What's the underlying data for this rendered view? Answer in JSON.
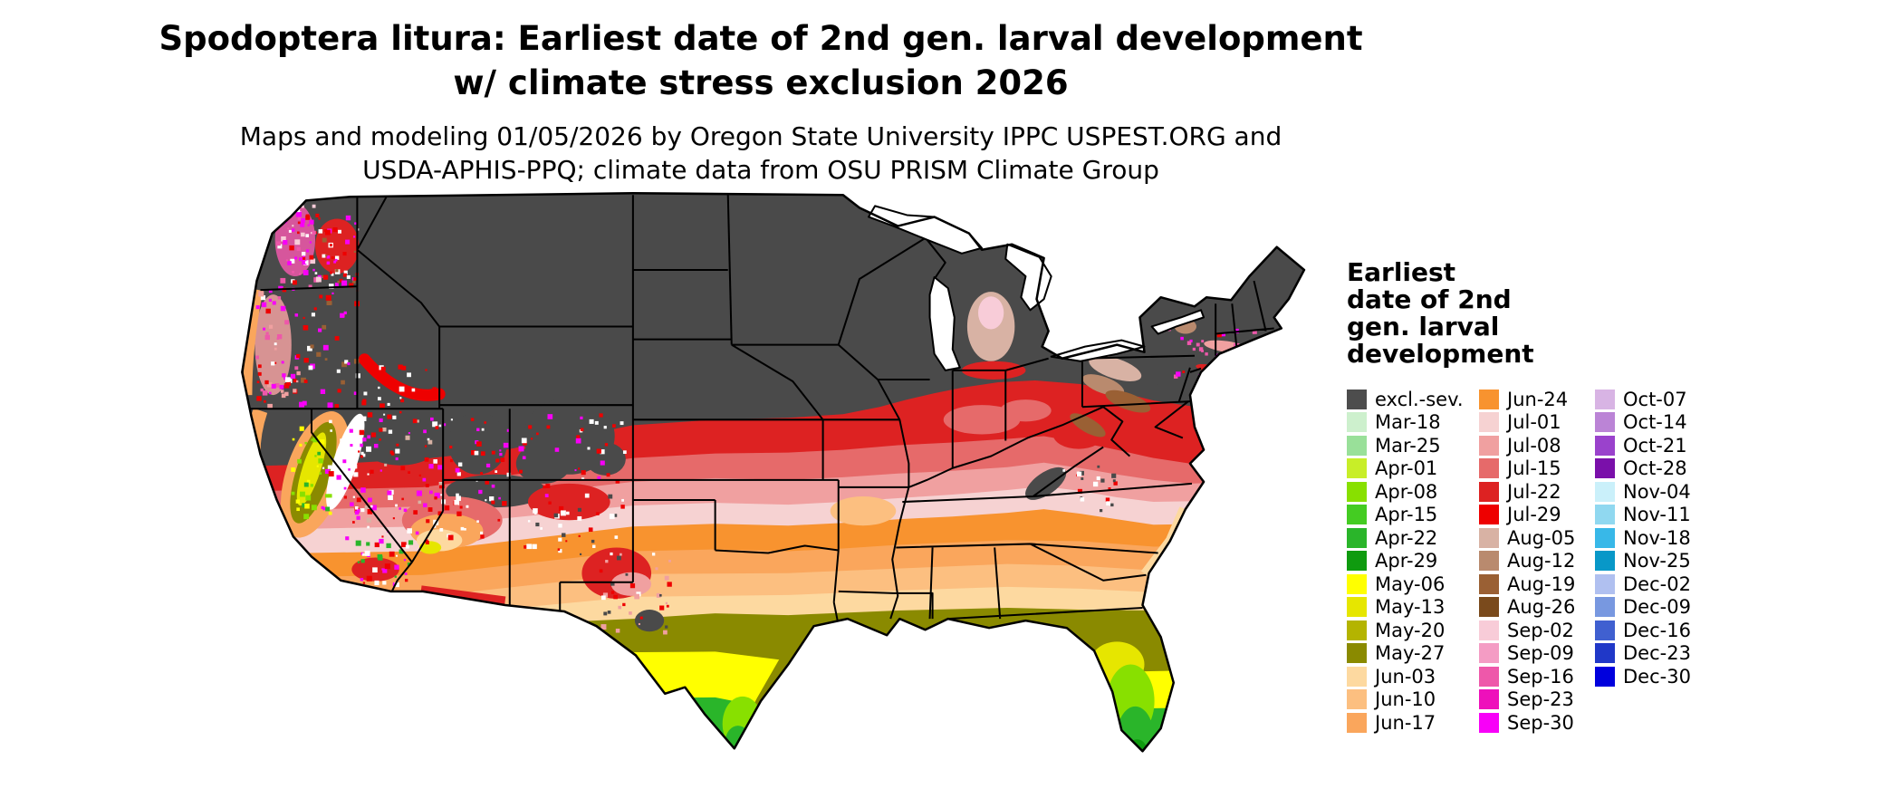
{
  "title": {
    "line1": "Spodoptera litura: Earliest date of 2nd gen. larval development",
    "line2": "w/ climate stress exclusion 2026"
  },
  "subtitle": {
    "line1": "Maps and modeling 01/05/2026 by Oregon State University IPPC USPEST.ORG and",
    "line2": "USDA-APHIS-PPQ; climate data from OSU PRISM Climate Group"
  },
  "map": {
    "region": "Contiguous United States",
    "type": "raster choropleth of earliest date of 2nd generation larval development",
    "excluded_color": "#4a4a4a"
  },
  "legend": {
    "title_lines": [
      "Earliest",
      "date of 2nd",
      "gen. larval",
      "development"
    ],
    "columns": [
      [
        {
          "label": "excl.-sev.",
          "color": "#4d4d4d"
        },
        {
          "label": "Mar-18",
          "color": "#cdf0cd"
        },
        {
          "label": "Mar-25",
          "color": "#99e099"
        },
        {
          "label": "Apr-01",
          "color": "#c8ee28"
        },
        {
          "label": "Apr-08",
          "color": "#88e000"
        },
        {
          "label": "Apr-15",
          "color": "#44cc22"
        },
        {
          "label": "Apr-22",
          "color": "#2ab52a"
        },
        {
          "label": "Apr-29",
          "color": "#0f9b0f"
        },
        {
          "label": "May-06",
          "color": "#ffff00"
        },
        {
          "label": "May-13",
          "color": "#e6e600"
        },
        {
          "label": "May-20",
          "color": "#b4b400"
        },
        {
          "label": "May-27",
          "color": "#8a8a00"
        },
        {
          "label": "Jun-03",
          "color": "#fdd9a0"
        },
        {
          "label": "Jun-10",
          "color": "#fcbf80"
        },
        {
          "label": "Jun-17",
          "color": "#faa65c"
        }
      ],
      [
        {
          "label": "Jun-24",
          "color": "#f8932f"
        },
        {
          "label": "Jul-01",
          "color": "#f6d2d2"
        },
        {
          "label": "Jul-08",
          "color": "#f0a0a0"
        },
        {
          "label": "Jul-15",
          "color": "#e66a6a"
        },
        {
          "label": "Jul-22",
          "color": "#dd2222"
        },
        {
          "label": "Jul-29",
          "color": "#ee0000"
        },
        {
          "label": "Aug-05",
          "color": "#d8b2a4"
        },
        {
          "label": "Aug-12",
          "color": "#b98a6e"
        },
        {
          "label": "Aug-19",
          "color": "#9a6034"
        },
        {
          "label": "Aug-26",
          "color": "#7a4a1c"
        },
        {
          "label": "Sep-02",
          "color": "#f8ccd8"
        },
        {
          "label": "Sep-09",
          "color": "#f49cc4"
        },
        {
          "label": "Sep-16",
          "color": "#ee58aa"
        },
        {
          "label": "Sep-23",
          "color": "#ee10bb"
        },
        {
          "label": "Sep-30",
          "color": "#f800f8"
        }
      ],
      [
        {
          "label": "Oct-07",
          "color": "#d8b4e4"
        },
        {
          "label": "Oct-14",
          "color": "#bb84d6"
        },
        {
          "label": "Oct-21",
          "color": "#9a42cc"
        },
        {
          "label": "Oct-28",
          "color": "#7a10aa"
        },
        {
          "label": "Nov-04",
          "color": "#caf0fa"
        },
        {
          "label": "Nov-11",
          "color": "#90d8f0"
        },
        {
          "label": "Nov-18",
          "color": "#38b8e8"
        },
        {
          "label": "Nov-25",
          "color": "#0898c8"
        },
        {
          "label": "Dec-02",
          "color": "#b0c0f0"
        },
        {
          "label": "Dec-09",
          "color": "#7898e0"
        },
        {
          "label": "Dec-16",
          "color": "#4060d0"
        },
        {
          "label": "Dec-23",
          "color": "#2038c8"
        },
        {
          "label": "Dec-30",
          "color": "#0000dd"
        }
      ]
    ]
  }
}
